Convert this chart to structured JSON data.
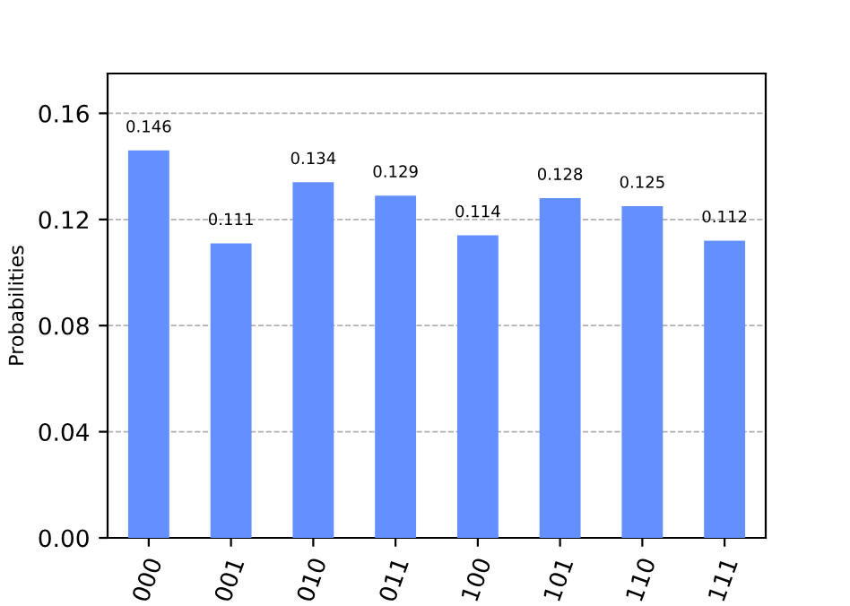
{
  "chart_data": {
    "type": "bar",
    "ylabel": "Probabilities",
    "categories": [
      "000",
      "001",
      "010",
      "011",
      "100",
      "101",
      "110",
      "111"
    ],
    "values": [
      0.146,
      0.111,
      0.134,
      0.129,
      0.114,
      0.128,
      0.125,
      0.112
    ],
    "color": "#648fff",
    "data_labels": true,
    "ylim": [
      0,
      0.175
    ],
    "yticks": [
      {
        "value": 0,
        "label": "0.00"
      },
      {
        "value": 0.04,
        "label": "0.04"
      },
      {
        "value": 0.08,
        "label": "0.08"
      },
      {
        "value": 0.12,
        "label": "0.12"
      },
      {
        "value": 0.16,
        "label": "0.16"
      }
    ],
    "grid": "y",
    "line_style": "dashed"
  }
}
